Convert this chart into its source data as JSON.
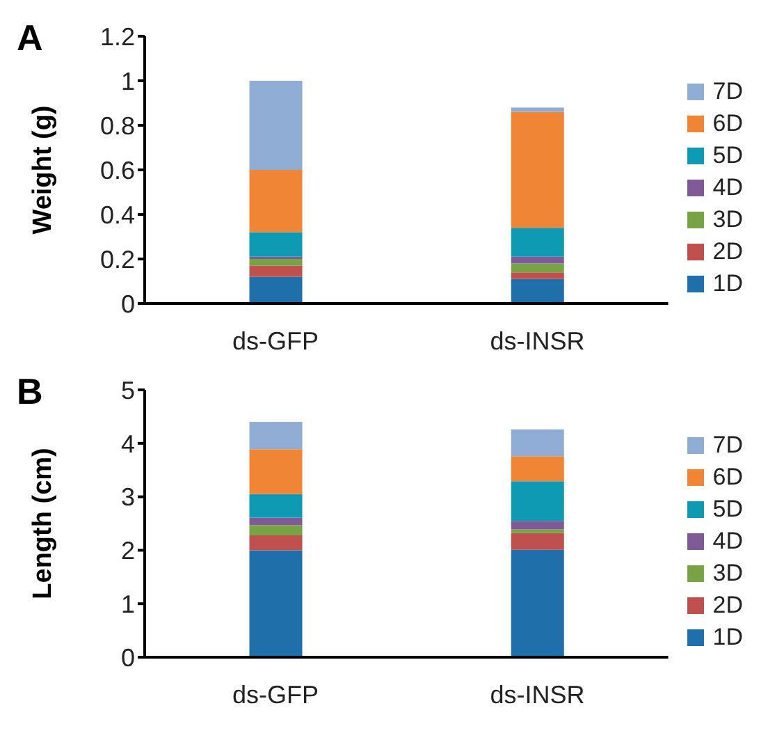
{
  "chart_data": [
    {
      "type": "bar",
      "title": "A",
      "ylabel": "Weight (g)",
      "categories": [
        "ds-GFP",
        "ds-INSR"
      ],
      "stacked": true,
      "legend": "right",
      "grid": false,
      "ylim": [
        0,
        1.2
      ],
      "yticks": [
        0,
        0.2,
        0.4,
        0.6,
        0.8,
        1,
        1.2
      ],
      "series": [
        {
          "name": "1D",
          "color": "#1f70aa",
          "values": [
            0.12,
            0.11
          ]
        },
        {
          "name": "2D",
          "color": "#c0504d",
          "values": [
            0.05,
            0.03
          ]
        },
        {
          "name": "3D",
          "color": "#77a345",
          "values": [
            0.03,
            0.04
          ]
        },
        {
          "name": "4D",
          "color": "#7f5a96",
          "values": [
            0.01,
            0.03
          ]
        },
        {
          "name": "5D",
          "color": "#0f9ab3",
          "values": [
            0.11,
            0.13
          ]
        },
        {
          "name": "6D",
          "color": "#f08535",
          "values": [
            0.28,
            0.52
          ]
        },
        {
          "name": "7D",
          "color": "#8eacd4",
          "values": [
            0.4,
            0.02
          ]
        }
      ]
    },
    {
      "type": "bar",
      "title": "B",
      "ylabel": "Length (cm)",
      "categories": [
        "ds-GFP",
        "ds-INSR"
      ],
      "stacked": true,
      "legend": "right",
      "grid": false,
      "ylim": [
        0,
        5
      ],
      "yticks": [
        0,
        1,
        2,
        3,
        4,
        5
      ],
      "series": [
        {
          "name": "1D",
          "color": "#1f70aa",
          "values": [
            2.0,
            2.01
          ]
        },
        {
          "name": "2D",
          "color": "#c0504d",
          "values": [
            0.28,
            0.31
          ]
        },
        {
          "name": "3D",
          "color": "#77a345",
          "values": [
            0.19,
            0.07
          ]
        },
        {
          "name": "4D",
          "color": "#7f5a96",
          "values": [
            0.14,
            0.16
          ]
        },
        {
          "name": "5D",
          "color": "#0f9ab3",
          "values": [
            0.44,
            0.74
          ]
        },
        {
          "name": "6D",
          "color": "#f08535",
          "values": [
            0.84,
            0.47
          ]
        },
        {
          "name": "7D",
          "color": "#8eacd4",
          "values": [
            0.51,
            0.5
          ]
        }
      ]
    }
  ]
}
